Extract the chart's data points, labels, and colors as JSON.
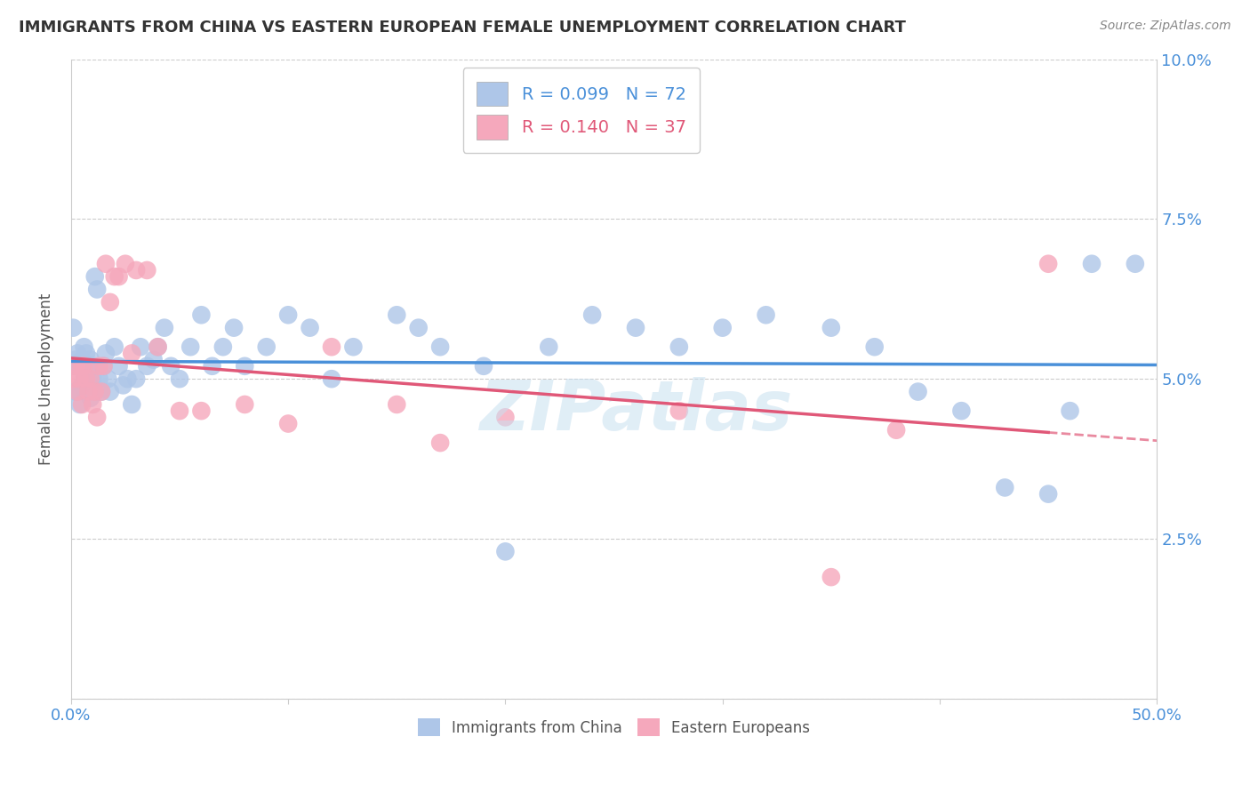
{
  "title": "IMMIGRANTS FROM CHINA VS EASTERN EUROPEAN FEMALE UNEMPLOYMENT CORRELATION CHART",
  "source": "Source: ZipAtlas.com",
  "ylabel": "Female Unemployment",
  "xmin": 0.0,
  "xmax": 0.5,
  "ymin": 0.0,
  "ymax": 0.1,
  "legend1_R": "0.099",
  "legend1_N": "72",
  "legend2_R": "0.140",
  "legend2_N": "37",
  "legend1_label": "Immigrants from China",
  "legend2_label": "Eastern Europeans",
  "blue_color": "#aec6e8",
  "pink_color": "#f5a8bc",
  "blue_line_color": "#4a90d9",
  "pink_line_color": "#e05878",
  "watermark": "ZIPatlas",
  "blue_x": [
    0.001,
    0.001,
    0.002,
    0.002,
    0.003,
    0.003,
    0.004,
    0.004,
    0.005,
    0.005,
    0.006,
    0.006,
    0.007,
    0.007,
    0.008,
    0.008,
    0.009,
    0.009,
    0.01,
    0.01,
    0.011,
    0.012,
    0.013,
    0.014,
    0.015,
    0.016,
    0.017,
    0.018,
    0.02,
    0.022,
    0.024,
    0.026,
    0.028,
    0.03,
    0.032,
    0.035,
    0.038,
    0.04,
    0.043,
    0.046,
    0.05,
    0.055,
    0.06,
    0.065,
    0.07,
    0.075,
    0.08,
    0.09,
    0.1,
    0.11,
    0.12,
    0.13,
    0.15,
    0.16,
    0.17,
    0.19,
    0.2,
    0.22,
    0.24,
    0.26,
    0.28,
    0.3,
    0.32,
    0.35,
    0.37,
    0.39,
    0.41,
    0.43,
    0.45,
    0.46,
    0.47,
    0.49
  ],
  "blue_y": [
    0.052,
    0.058,
    0.053,
    0.048,
    0.054,
    0.048,
    0.052,
    0.046,
    0.053,
    0.049,
    0.055,
    0.05,
    0.054,
    0.048,
    0.052,
    0.05,
    0.053,
    0.047,
    0.052,
    0.05,
    0.066,
    0.064,
    0.05,
    0.048,
    0.052,
    0.054,
    0.05,
    0.048,
    0.055,
    0.052,
    0.049,
    0.05,
    0.046,
    0.05,
    0.055,
    0.052,
    0.053,
    0.055,
    0.058,
    0.052,
    0.05,
    0.055,
    0.06,
    0.052,
    0.055,
    0.058,
    0.052,
    0.055,
    0.06,
    0.058,
    0.05,
    0.055,
    0.06,
    0.058,
    0.055,
    0.052,
    0.023,
    0.055,
    0.06,
    0.058,
    0.055,
    0.058,
    0.06,
    0.058,
    0.055,
    0.048,
    0.045,
    0.033,
    0.032,
    0.045,
    0.068,
    0.068
  ],
  "pink_x": [
    0.001,
    0.002,
    0.003,
    0.004,
    0.005,
    0.005,
    0.006,
    0.007,
    0.008,
    0.009,
    0.01,
    0.011,
    0.012,
    0.013,
    0.014,
    0.015,
    0.016,
    0.018,
    0.02,
    0.022,
    0.025,
    0.028,
    0.03,
    0.035,
    0.04,
    0.05,
    0.06,
    0.08,
    0.1,
    0.12,
    0.15,
    0.17,
    0.2,
    0.28,
    0.35,
    0.38,
    0.45
  ],
  "pink_y": [
    0.05,
    0.052,
    0.048,
    0.05,
    0.052,
    0.046,
    0.052,
    0.05,
    0.048,
    0.05,
    0.046,
    0.048,
    0.044,
    0.052,
    0.048,
    0.052,
    0.068,
    0.062,
    0.066,
    0.066,
    0.068,
    0.054,
    0.067,
    0.067,
    0.055,
    0.045,
    0.045,
    0.046,
    0.043,
    0.055,
    0.046,
    0.04,
    0.044,
    0.045,
    0.019,
    0.042,
    0.068
  ]
}
